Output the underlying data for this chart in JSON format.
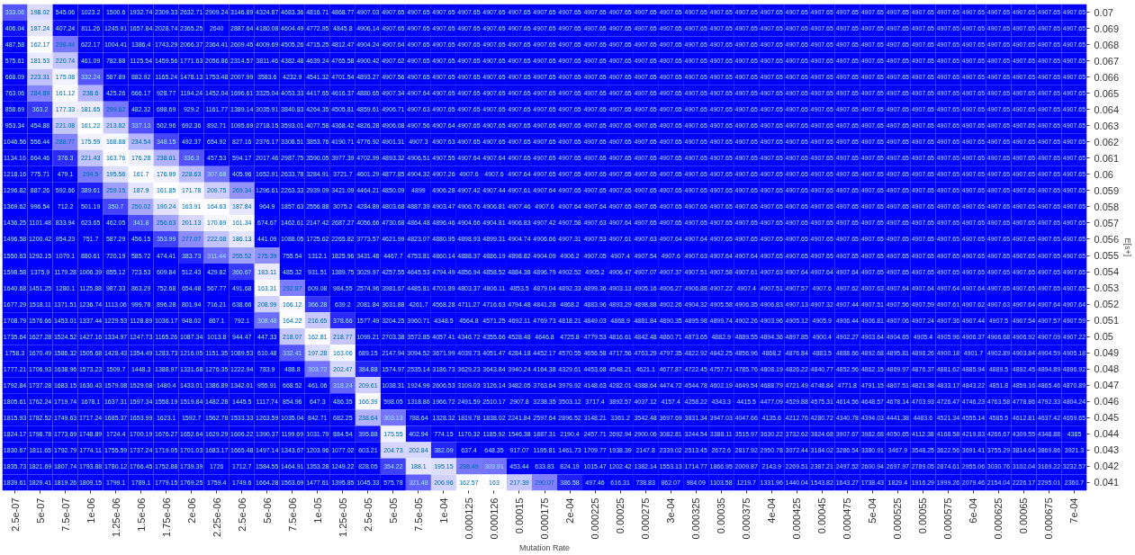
{
  "chart_data": {
    "type": "heatmap",
    "xlabel": "Mutation Rate",
    "ylabel": "E[s+]",
    "data_labels": true,
    "grid": false,
    "categories": [
      "2.5e-07",
      "5e-07",
      "7.5e-07",
      "1e-06",
      "1.25e-06",
      "1.5e-06",
      "1.75e-06",
      "2e-06",
      "2.25e-06",
      "2.5e-06",
      "5e-06",
      "7.5e-06",
      "1e-05",
      "1.25e-05",
      "2.5e-05",
      "5e-05",
      "7.5e-05",
      "1e-04",
      "0.000125",
      "0.000126",
      "0.00015",
      "0.000175",
      "2e-04",
      "0.000225",
      "0.00025",
      "0.000275",
      "3e-04",
      "0.000325",
      "0.00035",
      "0.000375",
      "4e-04",
      "0.000425",
      "0.00045",
      "0.000475",
      "5e-04",
      "0.000525",
      "0.00055",
      "0.000575",
      "6e-04",
      "0.000625",
      "0.00065",
      "0.000675",
      "7e-04"
    ],
    "y_categories": [
      "0.07",
      "0.069",
      "0.068",
      "0.067",
      "0.066",
      "0.065",
      "0.064",
      "0.063",
      "0.062",
      "0.061",
      "0.06",
      "0.059",
      "0.058",
      "0.057",
      "0.056",
      "0.055",
      "0.054",
      "0.053",
      "0.052",
      "0.051",
      "0.05",
      "0.049",
      "0.048",
      "0.047",
      "0.046",
      "0.045",
      "0.044",
      "0.043",
      "0.042",
      "0.041"
    ],
    "cells": [
      [
        333.06,
        198.02,
        545.06,
        1023.2,
        1500.6,
        1932.74,
        2309.33,
        2632.71,
        2909.24,
        3146.89,
        4324.87,
        4683.36,
        4816.71,
        4868.77,
        4907.03,
        4907.65,
        4907.65,
        4907.65,
        4907.65,
        4907.65,
        4907.65,
        4907.65,
        4907.65,
        4907.65,
        4907.65,
        4907.65,
        4907.65,
        4907.65,
        4907.65,
        4907.65,
        4907.65,
        4907.65,
        4907.65,
        4907.65,
        4907.65,
        4907.65,
        4907.65,
        4907.65,
        4907.65,
        4907.65,
        4907.65,
        4907.65,
        4907.65
      ],
      [
        406.04,
        187.24,
        407.24,
        811.26,
        1245.91,
        1657.84,
        2028.74,
        2365.25,
        2640,
        2887.64,
        4180.08,
        4604.49,
        4772.95,
        4845.8,
        4906.14,
        4907.65,
        4907.65,
        4907.65,
        4907.65,
        4907.65,
        4907.65,
        4907.65,
        4907.65,
        4907.65,
        4907.65,
        4907.65,
        4907.65,
        4907.65,
        4907.65,
        4907.65,
        4907.65,
        4907.65,
        4907.65,
        4907.65,
        4907.65,
        4907.65,
        4907.65,
        4907.65,
        4907.65,
        4907.65,
        4907.65,
        4907.65,
        4907.65
      ],
      [
        487.58,
        162.17,
        298.44,
        622.17,
        1004.41,
        1386.4,
        1743.29,
        2066.37,
        2364.41,
        2609.45,
        4009.69,
        4505.26,
        4715.25,
        4812.47,
        4904.24,
        4907.64,
        4907.65,
        4907.65,
        4907.65,
        4907.65,
        4907.65,
        4907.65,
        4907.65,
        4907.65,
        4907.65,
        4907.65,
        4907.65,
        4907.65,
        4907.65,
        4907.65,
        4907.65,
        4907.65,
        4907.65,
        4907.65,
        4907.65,
        4907.65,
        4907.65,
        4907.65,
        4907.65,
        4907.65,
        4907.65,
        4907.65,
        4907.65
      ],
      [
        575.61,
        181.53,
        220.74,
        461.09,
        782.88,
        1125.54,
        1459.56,
        1771.63,
        2056.86,
        2314.57,
        3811.46,
        4382.48,
        4639.24,
        4765.58,
        4900.42,
        4907.62,
        4907.65,
        4907.65,
        4907.65,
        4907.65,
        4907.65,
        4907.65,
        4907.65,
        4907.65,
        4907.65,
        4907.65,
        4907.65,
        4907.65,
        4907.65,
        4907.65,
        4907.65,
        4907.65,
        4907.65,
        4907.65,
        4907.65,
        4907.65,
        4907.65,
        4907.65,
        4907.65,
        4907.65,
        4907.65,
        4907.65,
        4907.65
      ],
      [
        668.09,
        223.31,
        175.08,
        332.24,
        587.89,
        882.92,
        1165.24,
        1478.13,
        1753.48,
        2007.99,
        3583.6,
        4232.9,
        4541.32,
        4701.54,
        4893.27,
        4907.56,
        4907.65,
        4907.65,
        4907.65,
        4907.65,
        4907.65,
        4907.65,
        4907.65,
        4907.65,
        4907.65,
        4907.65,
        4907.65,
        4907.65,
        4907.65,
        4907.65,
        4907.65,
        4907.65,
        4907.65,
        4907.65,
        4907.65,
        4907.65,
        4907.65,
        4907.65,
        4907.65,
        4907.65,
        4907.65,
        4907.65,
        4907.65
      ],
      [
        763.06,
        284.89,
        161.12,
        238.6,
        425.26,
        666.17,
        928.77,
        1194.24,
        1452.04,
        1696.61,
        3325.04,
        4053.33,
        4417.65,
        4616.37,
        4880.65,
        4907.34,
        4907.64,
        4907.65,
        4907.65,
        4907.65,
        4907.65,
        4907.65,
        4907.65,
        4907.65,
        4907.65,
        4907.65,
        4907.65,
        4907.65,
        4907.65,
        4907.65,
        4907.65,
        4907.65,
        4907.65,
        4907.65,
        4907.65,
        4907.65,
        4907.65,
        4907.65,
        4907.65,
        4907.65,
        4907.65,
        4907.65,
        4907.65
      ],
      [
        858.69,
        363.2,
        177.33,
        181.65,
        299.62,
        482.32,
        698.69,
        929.2,
        1161.77,
        1389.14,
        3035.91,
        3840.83,
        4264.35,
        4505.81,
        4859.61,
        4906.71,
        4907.63,
        4907.65,
        4907.65,
        4907.65,
        4907.65,
        4907.65,
        4907.65,
        4907.65,
        4907.65,
        4907.65,
        4907.65,
        4907.65,
        4907.65,
        4907.65,
        4907.65,
        4907.65,
        4907.65,
        4907.65,
        4907.65,
        4907.65,
        4907.65,
        4907.65,
        4907.65,
        4907.65,
        4907.65,
        4907.65,
        4907.65
      ],
      [
        953.34,
        454.88,
        221.08,
        161.22,
        213.82,
        337.13,
        502.96,
        692.36,
        892.71,
        1095.69,
        2718.15,
        3593.01,
        4077.58,
        4368.42,
        4826.28,
        4906.08,
        4907.56,
        4907.64,
        4907.65,
        4907.65,
        4907.65,
        4907.65,
        4907.65,
        4907.65,
        4907.65,
        4907.65,
        4907.65,
        4907.65,
        4907.65,
        4907.65,
        4907.65,
        4907.65,
        4907.65,
        4907.65,
        4907.65,
        4907.65,
        4907.65,
        4907.65,
        4907.65,
        4907.65,
        4907.65,
        4907.65,
        4907.65
      ],
      [
        1046.56,
        556.44,
        288.77,
        175.59,
        168.88,
        234.54,
        348.15,
        492.37,
        654.92,
        827.16,
        2376.17,
        3308.51,
        3853.76,
        4190.71,
        4776.92,
        4901.31,
        4907.3,
        4907.63,
        4907.65,
        4907.65,
        4907.65,
        4907.65,
        4907.65,
        4907.65,
        4907.65,
        4907.65,
        4907.65,
        4907.65,
        4907.65,
        4907.65,
        4907.65,
        4907.65,
        4907.65,
        4907.65,
        4907.65,
        4907.65,
        4907.65,
        4907.65,
        4907.65,
        4907.65,
        4907.65,
        4907.65,
        4907.65
      ],
      [
        1134.16,
        664.46,
        376.3,
        221.43,
        163.76,
        176.28,
        238.61,
        336.3,
        457.53,
        594.17,
        2017.46,
        2987.75,
        3590.05,
        3977.39,
        4702.99,
        4893.32,
        4906.51,
        4907.55,
        4907.64,
        4907.64,
        4907.65,
        4907.65,
        4907.65,
        4907.65,
        4907.65,
        4907.65,
        4907.65,
        4907.65,
        4907.65,
        4907.65,
        4907.65,
        4907.65,
        4907.65,
        4907.65,
        4907.65,
        4907.65,
        4907.65,
        4907.65,
        4907.65,
        4907.65,
        4907.65,
        4907.65,
        4907.65
      ],
      [
        1218.16,
        775.71,
        479.1,
        294.5,
        195.56,
        161.7,
        176.99,
        228.63,
        307.68,
        405.96,
        1652.91,
        2633.78,
        3284.91,
        3721.7,
        4601.29,
        4877.85,
        4904.32,
        4907.26,
        4907.6,
        4907.6,
        4907.64,
        4907.65,
        4907.65,
        4907.65,
        4907.65,
        4907.65,
        4907.65,
        4907.65,
        4907.65,
        4907.65,
        4907.65,
        4907.65,
        4907.65,
        4907.65,
        4907.65,
        4907.65,
        4907.65,
        4907.65,
        4907.65,
        4907.65,
        4907.65,
        4907.65,
        4907.65
      ],
      [
        1296.82,
        887.26,
        592.66,
        389.61,
        259.15,
        187.9,
        161.85,
        171.78,
        209.75,
        269.34,
        1296.61,
        2263.33,
        2939.09,
        3421.09,
        4464.21,
        4850.09,
        4899,
        4906.28,
        4907.42,
        4907.44,
        4907.61,
        4907.64,
        4907.65,
        4907.65,
        4907.65,
        4907.65,
        4907.65,
        4907.65,
        4907.65,
        4907.65,
        4907.65,
        4907.65,
        4907.65,
        4907.65,
        4907.65,
        4907.65,
        4907.65,
        4907.65,
        4907.65,
        4907.65,
        4907.65,
        4907.65,
        4907.65
      ],
      [
        1369.62,
        996.54,
        712.2,
        501.19,
        350.7,
        250.02,
        190.24,
        163.91,
        164.63,
        187.84,
        964.9,
        1857.63,
        2556.88,
        3075.2,
        4284.89,
        4803.68,
        4887.39,
        4903.47,
        4906.76,
        4906.81,
        4907.46,
        4907.6,
        4907.64,
        4907.64,
        4907.65,
        4907.65,
        4907.65,
        4907.65,
        4907.65,
        4907.65,
        4907.65,
        4907.65,
        4907.65,
        4907.65,
        4907.65,
        4907.65,
        4907.65,
        4907.65,
        4907.65,
        4907.65,
        4907.65,
        4907.65,
        4907.65
      ],
      [
        1436.25,
        1101.48,
        833.94,
        623.65,
        462.05,
        341.8,
        256.63,
        201.13,
        170.69,
        161.34,
        674.67,
        1462.61,
        2147.42,
        2687.27,
        4056.66,
        4730.68,
        4864.48,
        4896.46,
        4904.66,
        4904.81,
        4906.83,
        4907.42,
        4907.58,
        4907.63,
        4907.64,
        4907.65,
        4907.65,
        4907.65,
        4907.65,
        4907.65,
        4907.65,
        4907.65,
        4907.65,
        4907.65,
        4907.65,
        4907.65,
        4907.65,
        4907.65,
        4907.65,
        4907.65,
        4907.65,
        4907.65,
        4907.65
      ],
      [
        1496.58,
        1200.42,
        954.23,
        751.7,
        587.29,
        456.15,
        353.99,
        277.07,
        222.08,
        186.13,
        441.09,
        1088.05,
        1725.62,
        2265.82,
        3773.57,
        4621.99,
        4823.07,
        4880.95,
        4898.93,
        4899.31,
        4904.74,
        4906.66,
        4907.31,
        4907.53,
        4907.61,
        4907.63,
        4907.64,
        4907.64,
        4907.65,
        4907.65,
        4907.65,
        4907.65,
        4907.65,
        4907.65,
        4907.65,
        4907.65,
        4907.65,
        4907.65,
        4907.65,
        4907.65,
        4907.65,
        4907.65,
        4907.65
      ],
      [
        1550.63,
        1292.15,
        1070.1,
        880.61,
        720.19,
        585.72,
        474.41,
        383.73,
        311.44,
        255.52,
        275.39,
        755.54,
        1312.1,
        1825.96,
        3431.48,
        4467.7,
        4753.81,
        4860.14,
        4888.37,
        4886.19,
        4898.82,
        4904.09,
        4906.2,
        4907.05,
        4907.4,
        4907.54,
        4907.6,
        4907.63,
        4907.64,
        4907.64,
        4907.65,
        4907.65,
        4907.65,
        4907.65,
        4907.65,
        4907.65,
        4907.65,
        4907.65,
        4907.65,
        4907.65,
        4907.65,
        4907.65,
        4907.65
      ],
      [
        1598.58,
        1375.9,
        1179.28,
        1006.39,
        855.12,
        723.53,
        609.84,
        512.43,
        429.82,
        360.67,
        183.11,
        485.32,
        931.51,
        1389.75,
        3029.97,
        4257.55,
        4645.53,
        4794.49,
        4856.94,
        4858.52,
        4884.38,
        4896.79,
        4902.52,
        4905.2,
        4906.47,
        4907.07,
        4907.37,
        4907.51,
        4907.58,
        4907.61,
        4907.63,
        4907.64,
        4907.64,
        4907.64,
        4907.65,
        4907.65,
        4907.65,
        4907.65,
        4907.65,
        4907.65,
        4907.65,
        4907.65,
        4907.65
      ],
      [
        1640.68,
        1451.25,
        1280.1,
        1125.88,
        987.33,
        863.29,
        752.68,
        654.48,
        567.77,
        491.68,
        163.31,
        292.87,
        609.08,
        984.55,
        2574.96,
        3981.67,
        4485.81,
        4701.89,
        4803.37,
        4806.11,
        4853.5,
        4879.04,
        4892.33,
        4899.36,
        4903.13,
        4905.16,
        4906.27,
        4906.88,
        4907.22,
        4907.4,
        4907.51,
        4907.57,
        4907.6,
        4907.62,
        4907.63,
        4907.64,
        4907.64,
        4907.64,
        4907.64,
        4907.65,
        4907.65,
        4907.65,
        4907.65
      ],
      [
        1677.29,
        1518.11,
        1371.51,
        1236.74,
        1113.06,
        999.78,
        896.28,
        801.94,
        716.21,
        638.66,
        208.99,
        166.12,
        366.28,
        639.2,
        2081.84,
        3631.88,
        4261.7,
        4568.28,
        4711.27,
        4716.63,
        4794.48,
        4841.28,
        4868.2,
        4883.96,
        4893.29,
        4898.88,
        4902.26,
        4904.32,
        4905.58,
        4906.35,
        4906.83,
        4907.13,
        4907.32,
        4907.44,
        4907.51,
        4907.56,
        4907.59,
        4907.61,
        4907.62,
        4907.63,
        4907.64,
        4907.64,
        4907.64
      ],
      [
        1708.79,
        1576.66,
        1453.01,
        1337.44,
        1229.53,
        1128.89,
        1036.17,
        948.02,
        867.1,
        792.1,
        308.48,
        164.22,
        216.65,
        378.66,
        1577.49,
        3204.25,
        3960.71,
        4348.5,
        4564.8,
        4571.25,
        4692.11,
        4769.73,
        4818.21,
        4849.03,
        4868.9,
        4881.84,
        4890.35,
        4895.98,
        4899.74,
        4902.26,
        4903.96,
        4905.12,
        4905.9,
        4906.44,
        4906.81,
        4907.06,
        4907.24,
        4907.36,
        4907.44,
        4907.5,
        4907.54,
        4907.57,
        4907.59
      ],
      [
        1735.64,
        1627.28,
        1524.52,
        1427.16,
        1334.97,
        1247.73,
        1165.26,
        1087.34,
        1013.8,
        944.47,
        447.33,
        218.07,
        162.81,
        218.77,
        1099.21,
        2703.38,
        3572.85,
        4057.41,
        4346.72,
        4355.66,
        4528.48,
        4646.8,
        4725.8,
        4779.53,
        4816.61,
        4842.48,
        4860.71,
        4873.65,
        4882.9,
        4889.55,
        4894.36,
        4897.85,
        4900.4,
        4902.27,
        4903.64,
        4904.65,
        4905.4,
        4905.96,
        4906.37,
        4906.68,
        4906.92,
        4907.09,
        4907.22
      ],
      [
        1758.3,
        1670.49,
        1586.32,
        1505.68,
        1428.43,
        1354.49,
        1283.73,
        1216.05,
        1151.35,
        1089.53,
        610.48,
        332.41,
        197.28,
        163.06,
        689.15,
        2147.94,
        3094.52,
        3671.99,
        4039.73,
        4051.47,
        4284.18,
        4452.17,
        4570.55,
        4656.58,
        4717.56,
        4763.29,
        4797.35,
        4822.92,
        4842.25,
        4856.96,
        4868.2,
        4876.84,
        4883.5,
        4888.66,
        4892.68,
        4895.81,
        4898.26,
        4900.18,
        4901.7,
        4902.89,
        4903.84,
        4904.59,
        4905.18
      ],
      [
        1777.21,
        1706.93,
        1638.96,
        1573.23,
        1509.7,
        1448.3,
        1388.97,
        1331.68,
        1276.35,
        1222.94,
        783.9,
        488.8,
        303.72,
        202.47,
        384.88,
        1574.97,
        2535.14,
        3186.73,
        3629.23,
        3643.84,
        3940.24,
        4164.38,
        4329.61,
        4453.68,
        4548.21,
        4621.1,
        4677.87,
        4722.45,
        4757.71,
        4785.76,
        4808.19,
        4826.22,
        4840.77,
        4852.56,
        4862.15,
        4869.97,
        4876.37,
        4881.62,
        4885.94,
        4889.5,
        4892.45,
        4894.89,
        4896.92
      ],
      [
        1792.84,
        1737.28,
        1683.15,
        1630.43,
        1579.08,
        1529.08,
        1480.4,
        1433.01,
        1386.89,
        1342.01,
        955.91,
        668.52,
        461.06,
        318.24,
        209.61,
        1038.31,
        1924.99,
        2606.53,
        3109.03,
        3126.14,
        3482.05,
        3763.64,
        3979.92,
        4148.63,
        4282.01,
        4388.64,
        4474.72,
        4544.78,
        4602.19,
        4649.54,
        4688.79,
        4721.49,
        4748.84,
        4771.8,
        4791.15,
        4807.51,
        4821.38,
        4833.17,
        4843.22,
        4851.8,
        4859.16,
        4865.46,
        4870.89
      ],
      [
        1805.61,
        1762.24,
        1719.74,
        1678.1,
        1637.31,
        1597.34,
        1558.19,
        1519.84,
        1482.28,
        1445.5,
        1117.74,
        854.96,
        647.3,
        486.35,
        166.39,
        598.05,
        1318.86,
        1966.72,
        2491.59,
        2510.17,
        2907.8,
        3238.35,
        3503.12,
        3717.4,
        3892.57,
        4037.12,
        4157.4,
        4258.22,
        4343.3,
        4415.5,
        4477.09,
        4529.88,
        4575.31,
        4614.56,
        4648.57,
        4678.14,
        4703.93,
        4726.47,
        4746.23,
        4763.58,
        4778.86,
        4792.33,
        4804.24
      ],
      [
        1815.93,
        1782.52,
        1749.63,
        1717.24,
        1685.37,
        1653.99,
        1623.1,
        1592.7,
        1562.78,
        1533.33,
        1263.59,
        1035.04,
        842.71,
        682.25,
        238.64,
        303.13,
        788.64,
        1328.32,
        1819.78,
        1838.02,
        2241.84,
        2597.64,
        2896.52,
        3148.21,
        3361.2,
        3542.48,
        3697.69,
        3831.34,
        3947.03,
        4047.66,
        4135.6,
        4212.76,
        4280.72,
        4340.78,
        4394.03,
        4441.38,
        4483.6,
        4521.34,
        4555.14,
        4585.5,
        4612.81,
        4637.42,
        4659.65
      ],
      [
        1824.17,
        1798.78,
        1773.69,
        1748.89,
        1724.4,
        1700.19,
        1676.27,
        1652.64,
        1629.29,
        1606.22,
        1390.37,
        1199.69,
        1031.79,
        884.54,
        395.88,
        175.55,
        402.94,
        774.15,
        1170.32,
        1185.92,
        1546.38,
        1887.31,
        2190.4,
        2457.71,
        2692.94,
        2900.06,
        3082.81,
        3244.54,
        3388.11,
        3515.97,
        3630.22,
        3732.62,
        3824.68,
        3907.67,
        3982.68,
        4050.65,
        4112.38,
        4168.58,
        4219.83,
        4266.67,
        4309.55,
        4348.88,
        4385
      ],
      [
        1830.67,
        1811.65,
        1792.79,
        1774.11,
        1755.59,
        1737.24,
        1719.05,
        1701.03,
        1683.17,
        1665.48,
        1497.14,
        1343.67,
        1203.96,
        1077.02,
        603.21,
        204.73,
        202.84,
        382.09,
        637.4,
        648.35,
        917.07,
        1195.81,
        1461.73,
        1709.77,
        1938.39,
        2147.8,
        2339.02,
        2513.45,
        2672.6,
        2817.92,
        2950.78,
        3072.44,
        3184.02,
        3286.54,
        3380.91,
        3467.9,
        3548.25,
        3622.56,
        3691.41,
        3755.29,
        3814.64,
        3869.86,
        3921.3
      ],
      [
        1835.73,
        1821.69,
        1807.74,
        1793.88,
        1780.12,
        1766.45,
        1752.88,
        1739.39,
        1726,
        1712.7,
        1584.55,
        1464.91,
        1353.28,
        1249.22,
        828.05,
        354.22,
        188.1,
        195.15,
        298.49,
        303.91,
        453.44,
        633.83,
        824.19,
        1015.47,
        1202.42,
        1382.14,
        1553.13,
        1714.77,
        1866.95,
        2009.87,
        2143.9,
        2269.51,
        2387.21,
        2497.52,
        2600.94,
        2697.97,
        2789.05,
        2874.61,
        2955.06,
        3030.76,
        3102.04,
        3169.22,
        3232.57
      ],
      [
        1839.61,
        1829.41,
        1819.26,
        1809.15,
        1799.1,
        1789.1,
        1779.15,
        1769.25,
        1759.4,
        1749.6,
        1664.28,
        1563.69,
        1477.61,
        1395.85,
        1045.33,
        575.78,
        321.48,
        206.96,
        162.57,
        163,
        217.39,
        290.07,
        386.58,
        497.46,
        616.31,
        738.83,
        862.07,
        984.09,
        1103.58,
        1219.7,
        1331.96,
        1440.04,
        1543.82,
        1643.27,
        1738.43,
        1829.4,
        1916.29,
        1999.26,
        2079.46,
        2154.04,
        2226.17,
        2295.01,
        2360.7
      ]
    ]
  }
}
